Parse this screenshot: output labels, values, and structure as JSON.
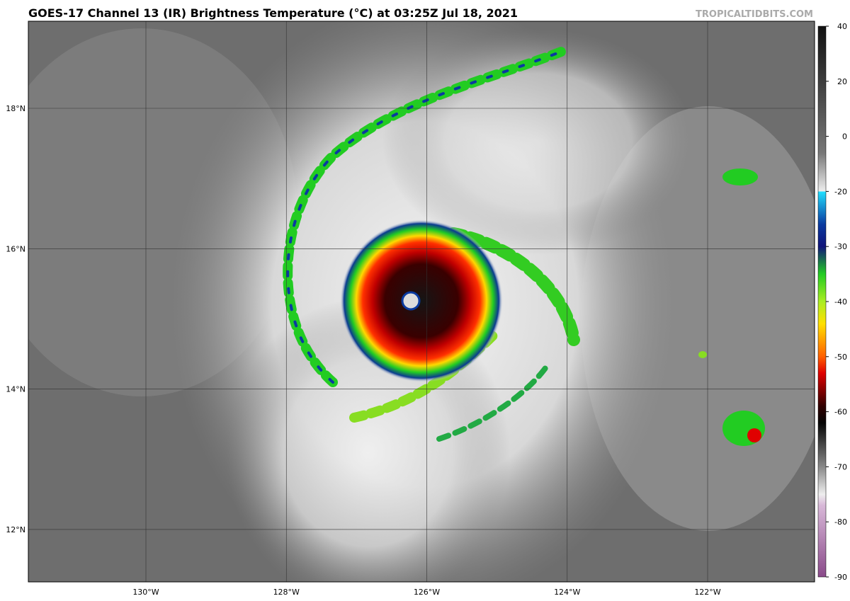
{
  "header": {
    "title": "GOES-17 Channel 13 (IR) Brightness Temperature (°C) at 03:25Z Jul 18, 2021",
    "credit": "TROPICALTIDBITS.COM"
  },
  "map": {
    "lon_labels": [
      "130°W",
      "128°W",
      "126°W",
      "124°W",
      "122°W"
    ],
    "lat_labels": [
      "18°N",
      "16°N",
      "14°N",
      "12°N"
    ]
  },
  "colorbar": {
    "ticks": [
      40,
      20,
      0,
      -20,
      -30,
      -40,
      -50,
      -60,
      -70,
      -80,
      -90
    ]
  }
}
